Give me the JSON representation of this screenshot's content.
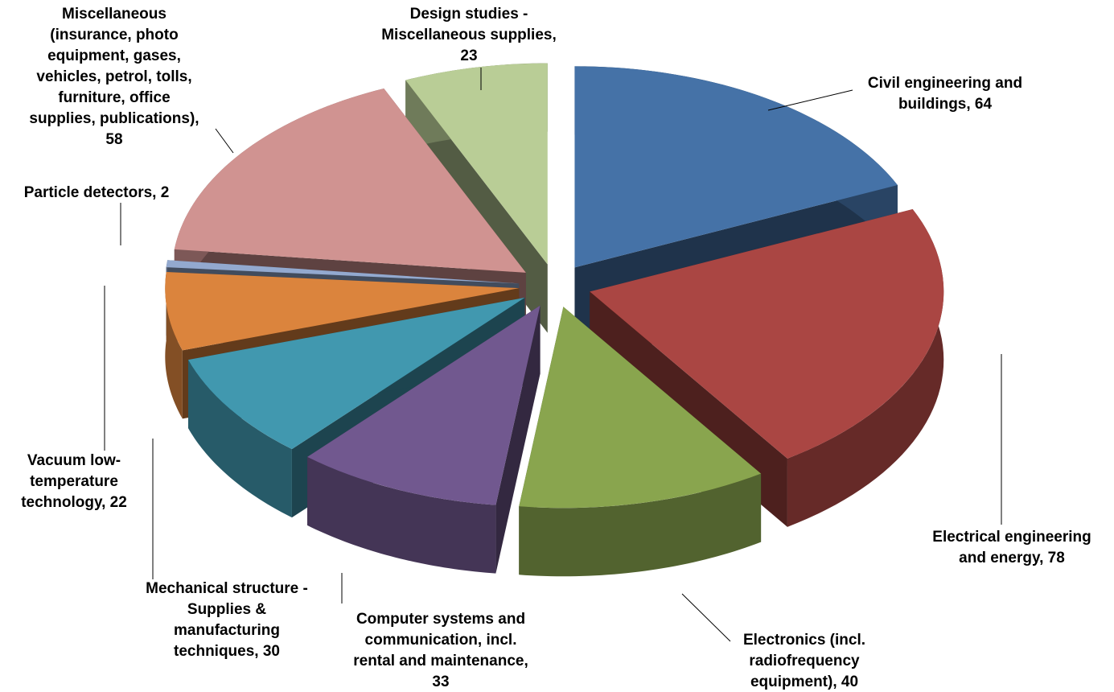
{
  "chart_data": {
    "type": "pie3d",
    "values": [
      64,
      78,
      40,
      33,
      30,
      22,
      2,
      58,
      23
    ],
    "value_labels": [
      [
        "Civil engineering and",
        "buildings, 64"
      ],
      [
        "Electrical engineering",
        "and energy, 78"
      ],
      [
        "Electronics (incl.",
        "radiofrequency",
        "equipment), 40"
      ],
      [
        "Computer systems and",
        "communication, incl.",
        "rental and maintenance,",
        "33"
      ],
      [
        "Mechanical structure -",
        "Supplies &",
        "manufacturing",
        "techniques, 30"
      ],
      [
        "Vacuum low-",
        "temperature",
        "technology, 22"
      ],
      [
        "Particle detectors, 2"
      ],
      [
        "Miscellaneous",
        "(insurance, photo",
        "equipment, gases,",
        "vehicles, petrol, tolls,",
        "furniture, office",
        "supplies, publications),",
        "58"
      ],
      [
        "Design studies -",
        "Miscellaneous supplies,",
        "23"
      ]
    ],
    "colors": [
      "#4572a7",
      "#aa4643",
      "#89a54e",
      "#71588f",
      "#4198af",
      "#db843d",
      "#93a9cf",
      "#d09391",
      "#b9cd96"
    ]
  }
}
